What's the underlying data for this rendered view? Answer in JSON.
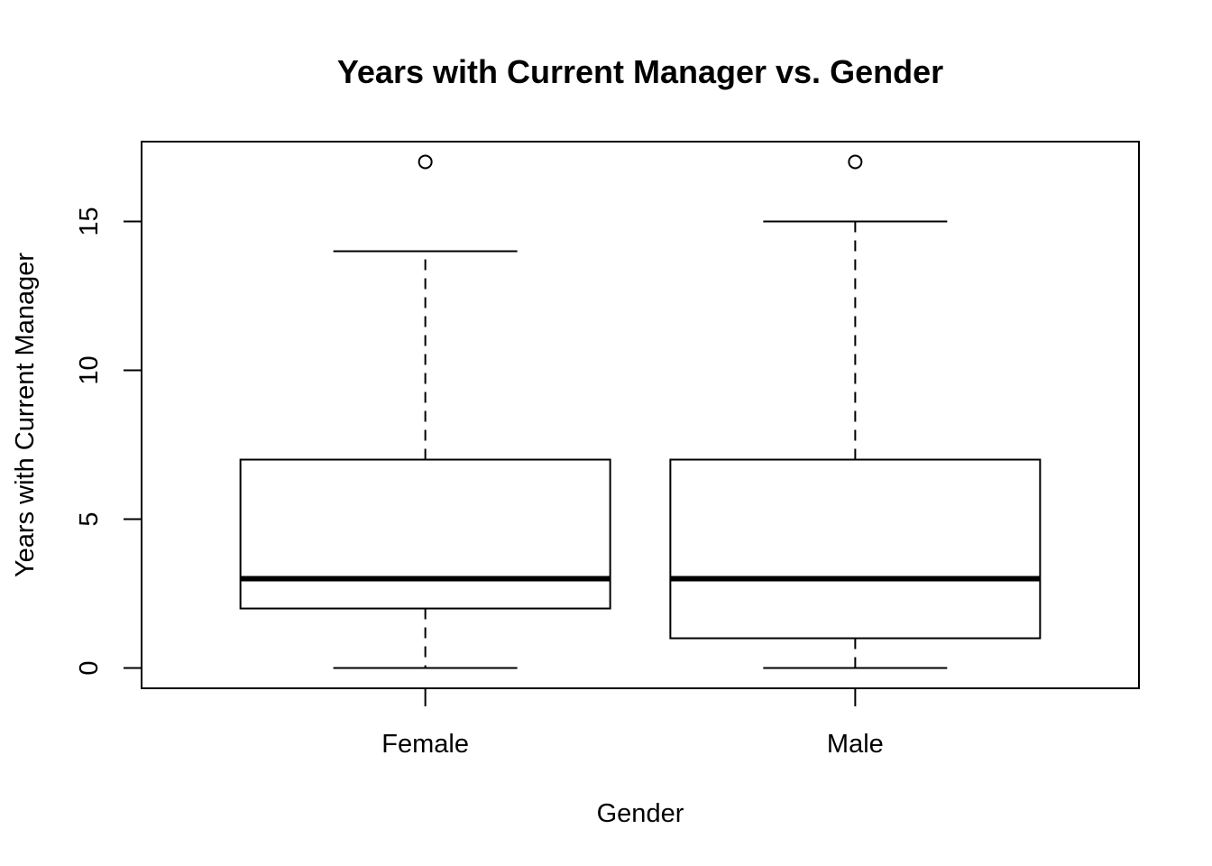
{
  "chart_data": {
    "type": "boxplot",
    "title": "Years with Current Manager vs. Gender",
    "xlabel": "Gender",
    "ylabel": "Years with Current Manager",
    "categories": [
      "Female",
      "Male"
    ],
    "boxes": [
      {
        "category": "Female",
        "whisker_low": 0,
        "q1": 2,
        "median": 3,
        "q3": 7,
        "whisker_high": 14,
        "outliers": [
          17
        ]
      },
      {
        "category": "Male",
        "whisker_low": 0,
        "q1": 1,
        "median": 3,
        "q3": 7,
        "whisker_high": 15,
        "outliers": [
          17
        ]
      }
    ],
    "yticks": [
      0,
      5,
      10,
      15
    ],
    "ylim": [
      -0.68,
      17.68
    ],
    "grid": false,
    "legend": "none"
  }
}
